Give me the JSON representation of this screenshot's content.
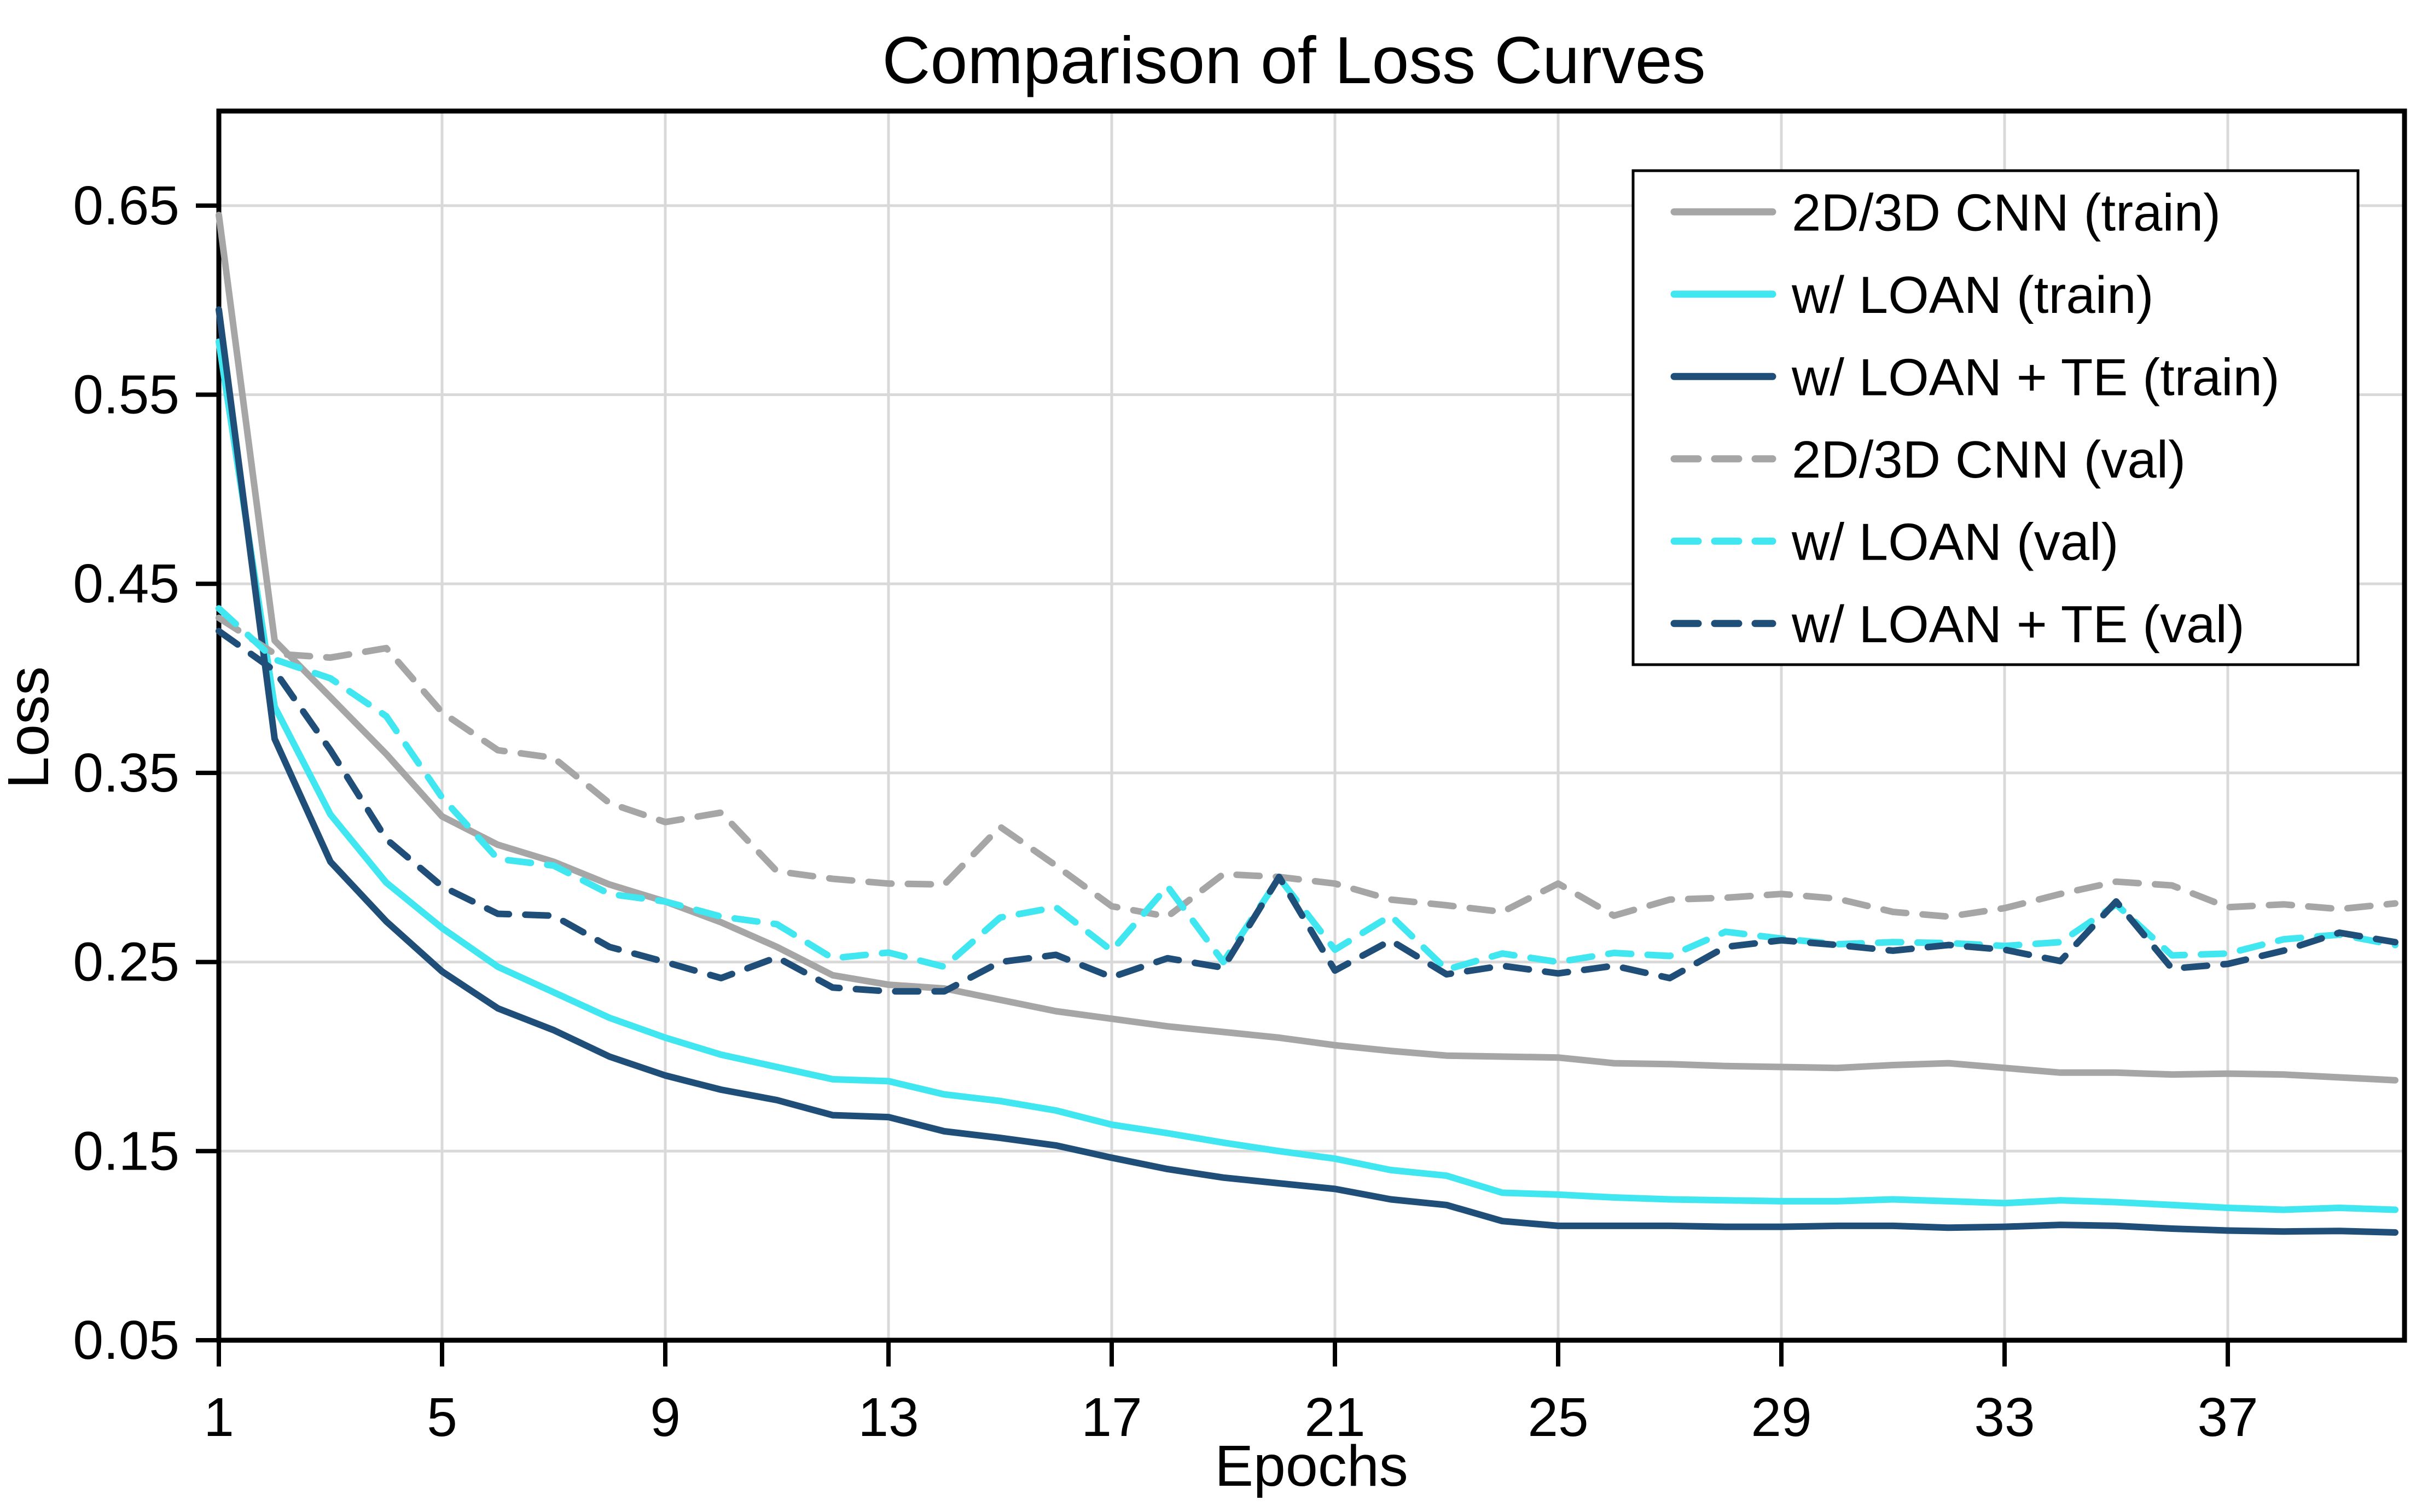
{
  "chart_data": {
    "type": "line",
    "title": "Comparison of Loss Curves",
    "xlabel": "Epochs",
    "ylabel": "Loss",
    "x_ticks": [
      1,
      5,
      9,
      13,
      17,
      21,
      25,
      29,
      33,
      37
    ],
    "y_ticks": [
      0.05,
      0.15,
      0.25,
      0.35,
      0.45,
      0.55,
      0.65
    ],
    "xlim": [
      1,
      40.2
    ],
    "ylim": [
      0.05,
      0.7
    ],
    "grid": true,
    "legend_position": "top-right",
    "x": [
      1,
      2,
      3,
      4,
      5,
      6,
      7,
      8,
      9,
      10,
      11,
      12,
      13,
      14,
      15,
      16,
      17,
      18,
      19,
      20,
      21,
      22,
      23,
      24,
      25,
      26,
      27,
      28,
      29,
      30,
      31,
      32,
      33,
      34,
      35,
      36,
      37,
      38,
      39,
      40
    ],
    "series": [
      {
        "name": "2D/3D CNN (train)",
        "color": "#a6a6a6",
        "style": "solid",
        "values": [
          0.645,
          0.42,
          0.39,
          0.36,
          0.327,
          0.312,
          0.303,
          0.291,
          0.282,
          0.271,
          0.258,
          0.243,
          0.238,
          0.236,
          0.23,
          0.224,
          0.22,
          0.216,
          0.213,
          0.21,
          0.206,
          0.203,
          0.2005,
          0.2,
          0.1995,
          0.1965,
          0.196,
          0.195,
          0.1945,
          0.194,
          0.1955,
          0.1965,
          0.194,
          0.1915,
          0.1915,
          0.1905,
          0.191,
          0.1905,
          0.189,
          0.1875
        ]
      },
      {
        "name": "w/ LOAN (train)",
        "color": "#40e6f0",
        "style": "solid",
        "values": [
          0.578,
          0.385,
          0.328,
          0.292,
          0.268,
          0.2475,
          0.234,
          0.2205,
          0.21,
          0.201,
          0.1945,
          0.188,
          0.187,
          0.18,
          0.1765,
          0.1715,
          0.164,
          0.1595,
          0.1545,
          0.15,
          0.146,
          0.14,
          0.137,
          0.128,
          0.127,
          0.1255,
          0.1245,
          0.124,
          0.1235,
          0.1235,
          0.1245,
          0.1235,
          0.1225,
          0.124,
          0.123,
          0.1215,
          0.12,
          0.119,
          0.12,
          0.119
        ]
      },
      {
        "name": "w/ LOAN + TE (train)",
        "color": "#1f4e79",
        "style": "solid",
        "values": [
          0.595,
          0.368,
          0.303,
          0.2715,
          0.245,
          0.2255,
          0.214,
          0.2,
          0.19,
          0.1825,
          0.177,
          0.169,
          0.168,
          0.1605,
          0.157,
          0.153,
          0.1465,
          0.1405,
          0.136,
          0.133,
          0.13,
          0.1245,
          0.1215,
          0.113,
          0.1105,
          0.1105,
          0.1105,
          0.11,
          0.11,
          0.1105,
          0.1105,
          0.1095,
          0.11,
          0.111,
          0.1105,
          0.109,
          0.108,
          0.1075,
          0.1078,
          0.107
        ]
      },
      {
        "name": "2D/3D CNN (val)",
        "color": "#a6a6a6",
        "style": "dashed",
        "values": [
          0.432,
          0.413,
          0.411,
          0.416,
          0.382,
          0.362,
          0.358,
          0.334,
          0.324,
          0.329,
          0.298,
          0.294,
          0.2915,
          0.291,
          0.3215,
          0.301,
          0.2795,
          0.274,
          0.2965,
          0.295,
          0.2915,
          0.283,
          0.28,
          0.2765,
          0.2915,
          0.2745,
          0.283,
          0.284,
          0.286,
          0.2835,
          0.2765,
          0.274,
          0.2785,
          0.286,
          0.2925,
          0.2905,
          0.279,
          0.2805,
          0.278,
          0.281
        ]
      },
      {
        "name": "w/ LOAN (val)",
        "color": "#40e6f0",
        "style": "dashed",
        "values": [
          0.437,
          0.41,
          0.4,
          0.38,
          0.337,
          0.3045,
          0.301,
          0.286,
          0.282,
          0.274,
          0.27,
          0.252,
          0.255,
          0.2475,
          0.2735,
          0.279,
          0.256,
          0.29,
          0.25,
          0.2945,
          0.2565,
          0.2745,
          0.246,
          0.2545,
          0.25,
          0.2548,
          0.2532,
          0.266,
          0.2624,
          0.2594,
          0.2605,
          0.26,
          0.2585,
          0.2605,
          0.2805,
          0.2535,
          0.2545,
          0.262,
          0.2645,
          0.259
        ]
      },
      {
        "name": "w/ LOAN + TE (val)",
        "color": "#1f4e79",
        "style": "dashed",
        "values": [
          0.425,
          0.404,
          0.362,
          0.315,
          0.29,
          0.2755,
          0.2745,
          0.258,
          0.25,
          0.2415,
          0.2525,
          0.2365,
          0.2345,
          0.2345,
          0.25,
          0.2538,
          0.242,
          0.252,
          0.247,
          0.295,
          0.2455,
          0.2614,
          0.2435,
          0.248,
          0.244,
          0.248,
          0.2415,
          0.258,
          0.2615,
          0.259,
          0.256,
          0.259,
          0.2565,
          0.2505,
          0.282,
          0.2465,
          0.249,
          0.256,
          0.2655,
          0.2605
        ]
      }
    ],
    "colors": {
      "gridline": "#d9d9d9",
      "axis": "#000000",
      "background": "#ffffff"
    }
  }
}
